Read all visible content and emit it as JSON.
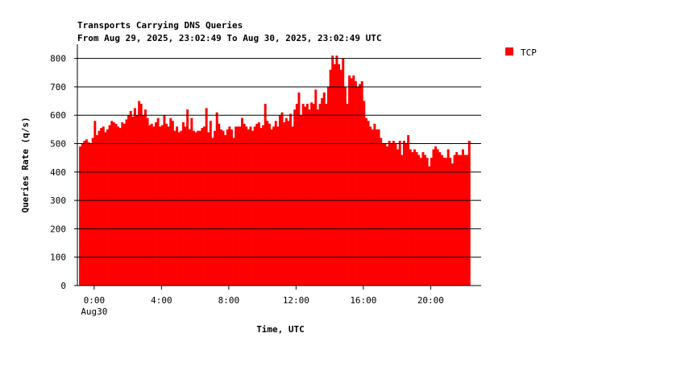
{
  "chart_data": {
    "type": "area",
    "title": "Transports Carrying DNS Queries",
    "subtitle": "From Aug 29, 2025, 23:02:49 To Aug 30, 2025, 23:02:49 UTC",
    "xlabel": "Time, UTC",
    "ylabel": "Queries Rate (q/s)",
    "ylim": [
      0,
      850
    ],
    "xlim_hours": [
      -1,
      23
    ],
    "grid": true,
    "legend_position": "top-right",
    "y_ticks": [
      0,
      100,
      200,
      300,
      400,
      500,
      600,
      700,
      800
    ],
    "x_ticks": [
      {
        "hour": 0,
        "label": "0:00",
        "sublabel": "Aug30"
      },
      {
        "hour": 4,
        "label": "4:00",
        "sublabel": ""
      },
      {
        "hour": 8,
        "label": "8:00",
        "sublabel": ""
      },
      {
        "hour": 12,
        "label": "12:00",
        "sublabel": ""
      },
      {
        "hour": 16,
        "label": "16:00",
        "sublabel": ""
      },
      {
        "hour": 20,
        "label": "20:00",
        "sublabel": ""
      }
    ],
    "series": [
      {
        "name": "TCP",
        "color": "#ff0000",
        "start_hour": -0.9,
        "step_hours": 0.125,
        "values": [
          490,
          500,
          510,
          515,
          505,
          500,
          520,
          580,
          530,
          545,
          555,
          560,
          540,
          550,
          565,
          580,
          575,
          570,
          560,
          555,
          575,
          570,
          585,
          600,
          615,
          595,
          625,
          600,
          650,
          640,
          600,
          620,
          590,
          565,
          570,
          560,
          575,
          590,
          560,
          565,
          600,
          570,
          560,
          590,
          580,
          545,
          560,
          540,
          545,
          575,
          560,
          620,
          550,
          590,
          545,
          540,
          545,
          545,
          555,
          560,
          625,
          540,
          580,
          520,
          545,
          610,
          570,
          550,
          545,
          530,
          550,
          560,
          550,
          520,
          560,
          560,
          560,
          590,
          570,
          560,
          550,
          560,
          545,
          560,
          570,
          575,
          555,
          565,
          640,
          580,
          570,
          550,
          560,
          580,
          560,
          600,
          610,
          575,
          590,
          580,
          605,
          560,
          620,
          640,
          680,
          600,
          640,
          630,
          640,
          620,
          645,
          640,
          690,
          620,
          640,
          660,
          680,
          640,
          700,
          760,
          810,
          780,
          810,
          780,
          760,
          800,
          700,
          640,
          740,
          730,
          740,
          720,
          700,
          710,
          720,
          650,
          590,
          580,
          560,
          550,
          570,
          550,
          550,
          520,
          500,
          500,
          490,
          510,
          500,
          510,
          500,
          480,
          510,
          460,
          510,
          500,
          530,
          480,
          470,
          480,
          470,
          460,
          450,
          470,
          460,
          450,
          420,
          450,
          480,
          490,
          480,
          470,
          460,
          450,
          450,
          480,
          450,
          430,
          460,
          470,
          460,
          460,
          480,
          460,
          460,
          510
        ]
      }
    ]
  }
}
